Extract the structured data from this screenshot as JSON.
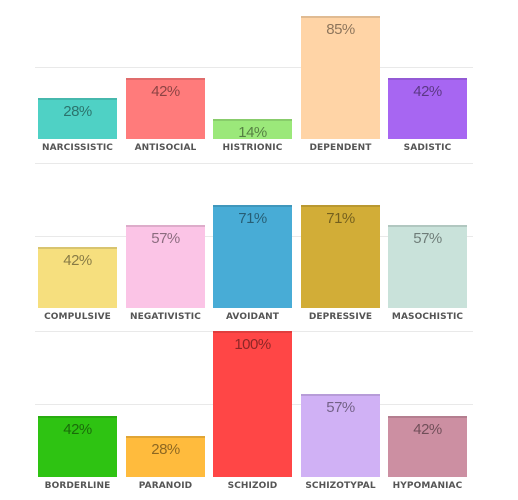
{
  "chart_data": [
    {
      "type": "bar",
      "categories": [
        "NARCISSISTIC",
        "ANTISOCIAL",
        "HISTRIONIC",
        "DEPENDENT",
        "SADISTIC"
      ],
      "values": [
        28,
        42,
        14,
        85,
        42
      ],
      "value_labels": [
        "28%",
        "42%",
        "14%",
        "85%",
        "42%"
      ],
      "colors": [
        "#4fd1c5",
        "#ff7b7b",
        "#9be87a",
        "#ffd4a6",
        "#a766f2"
      ],
      "title": "",
      "xlabel": "",
      "ylabel": "",
      "ylim": [
        0,
        100
      ],
      "grid": true,
      "legend": "none"
    },
    {
      "type": "bar",
      "categories": [
        "COMPULSIVE",
        "NEGATIVISTIC",
        "AVOIDANT",
        "DEPRESSIVE",
        "MASOCHISTIC"
      ],
      "values": [
        42,
        57,
        71,
        71,
        57
      ],
      "value_labels": [
        "42%",
        "57%",
        "71%",
        "71%",
        "57%"
      ],
      "colors": [
        "#f6df7e",
        "#fbc4e6",
        "#48acd6",
        "#d2ad37",
        "#c9e2da"
      ],
      "title": "",
      "xlabel": "",
      "ylabel": "",
      "ylim": [
        0,
        100
      ],
      "grid": true,
      "legend": "none"
    },
    {
      "type": "bar",
      "categories": [
        "BORDERLINE",
        "PARANOID",
        "SCHIZOID",
        "SCHIZOTYPAL",
        "HYPOMANIAC"
      ],
      "values": [
        42,
        28,
        100,
        57,
        42
      ],
      "value_labels": [
        "42%",
        "28%",
        "100%",
        "57%",
        "42%"
      ],
      "colors": [
        "#2ec312",
        "#ffbb3d",
        "#ff4646",
        "#d0b1f5",
        "#cc8fa2"
      ],
      "title": "",
      "xlabel": "",
      "ylabel": "",
      "ylim": [
        0,
        100
      ],
      "grid": true,
      "legend": "none"
    }
  ]
}
